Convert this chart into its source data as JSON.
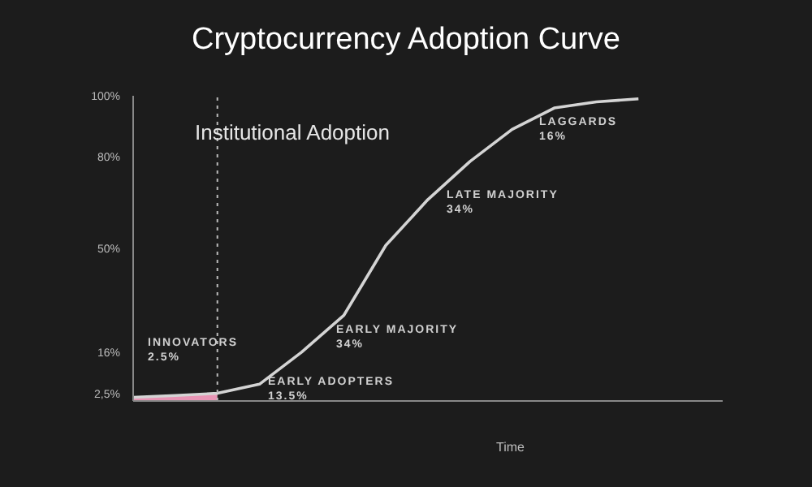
{
  "chart_data": {
    "type": "line",
    "title": "Cryptocurrency Adoption Curve",
    "xlabel": "Time",
    "categories": [
      null,
      null,
      null,
      null,
      null,
      null,
      null,
      null,
      null,
      null,
      null,
      null,
      null,
      null,
      null
    ],
    "ylim": [
      0,
      100
    ],
    "yticks": [
      {
        "value": 2.5,
        "label": "2,5%"
      },
      {
        "value": 16,
        "label": "16%"
      },
      {
        "value": 50,
        "label": "50%"
      },
      {
        "value": 80,
        "label": "80%"
      },
      {
        "value": 100,
        "label": "100%"
      }
    ],
    "grid": false,
    "marker": "none",
    "line_style": "solid",
    "series": [
      {
        "type": "area",
        "color": "#e895b5",
        "values": [
          1.2,
          1.8,
          2.5,
          null,
          null,
          null,
          null,
          null,
          null,
          null,
          null,
          null,
          null,
          null,
          null
        ]
      },
      {
        "color": "#d4d4d4",
        "values": [
          1.2,
          1.8,
          2.5,
          5.5,
          16,
          28,
          51,
          66,
          78.5,
          89,
          96,
          98,
          99,
          null,
          null
        ]
      }
    ],
    "annotations": [
      "Institutional Adoption",
      "INNOVATORS\n2.5%",
      "EARLY ADOPTERS\n13.5%",
      "EARLY MAJORITY\n34%",
      "LATE MAJORITY\n34%",
      "LAGGARDS\n16%"
    ]
  }
}
